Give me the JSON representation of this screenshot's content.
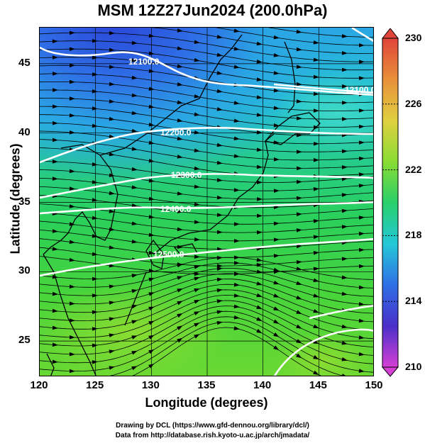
{
  "title": "MSM 12Z27Jun2024 (200.0hPa)",
  "xaxis": {
    "label": "Longitude (degrees)",
    "range": [
      120,
      150
    ],
    "ticks": [
      "120",
      "125",
      "130",
      "135",
      "140",
      "145",
      "150"
    ]
  },
  "yaxis": {
    "label": "Latitude  (degrees)",
    "range": [
      22.4,
      47.6
    ],
    "ticks": [
      "25",
      "30",
      "35",
      "40",
      "45"
    ]
  },
  "colorbar": {
    "range": [
      210,
      230
    ],
    "ticks": [
      "230",
      "226",
      "222",
      "218",
      "214",
      "210"
    ],
    "colors": [
      "#d63fd6",
      "#4a2fc8",
      "#2f6fe6",
      "#25c8d8",
      "#28d06a",
      "#8adc32",
      "#e0d040",
      "#e8903a",
      "#e0443a"
    ]
  },
  "contours": [
    {
      "label": "12100.0"
    },
    {
      "label": "12100.0"
    },
    {
      "label": "12200.0"
    },
    {
      "label": "12300.0"
    },
    {
      "label": "12400.0"
    },
    {
      "label": "12500.0"
    }
  ],
  "credits": {
    "line1": "Drawing by DCL (https://www.gfd-dennou.org/library/dcl/)",
    "line2": "Data from http://database.rish.kyoto-u.ac.jp/arch/jmadata/"
  }
}
